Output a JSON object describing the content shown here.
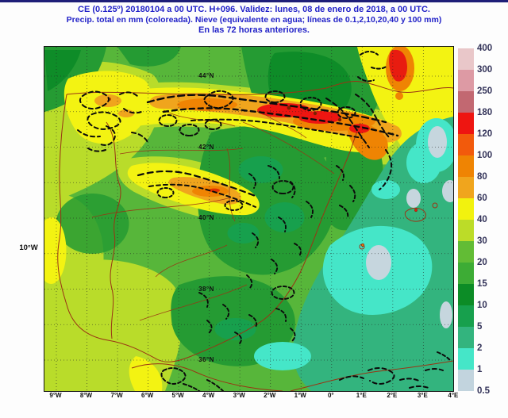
{
  "title": {
    "line1": "CE (0.125º) 20180104 a 00 UTC.  H+096. Validez: lunes, 08 de enero de 2018,  a  00 UTC.",
    "line2": "Precip. total en mm (coloreada). Nieve (equivalente en agua; líneas de 0.1,2,10,20,40 y 100 mm)",
    "line3": "En las 72 horas anteriores."
  },
  "map": {
    "lat_labels": [
      "44°N",
      "42°N",
      "40°N",
      "38°N",
      "36°N"
    ],
    "left_lon_label": "10°W",
    "lon_labels": [
      "9°W",
      "8°W",
      "7°W",
      "6°W",
      "5°W",
      "4°W",
      "3°W",
      "2°W",
      "1°W",
      "0°",
      "1°E",
      "2°E",
      "3°E",
      "4°E"
    ],
    "snow_line_values": "0.1, 2, 10, 20, 40, 100",
    "field": "Precipitación total (mm) en las 72 horas anteriores"
  },
  "colorbar": {
    "unit": "mm",
    "labels": [
      "400",
      "300",
      "250",
      "180",
      "120",
      "100",
      "80",
      "60",
      "40",
      "30",
      "20",
      "15",
      "10",
      "5",
      "2",
      "1",
      "0.5"
    ],
    "band_colors": [
      "#e9c7c9",
      "#dd9aa4",
      "#c26871",
      "#ee1511",
      "#f25a0c",
      "#ef8403",
      "#f0a51d",
      "#f2f20e",
      "#bcdc28",
      "#62bc35",
      "#3dac35",
      "#0c8c26",
      "#17a04d",
      "#33b47e",
      "#45e6c8",
      "#c2d4de"
    ]
  },
  "colors": {
    "title_blue": "#2222c8",
    "top_border": "#1e1e78",
    "border_lines": "#9a3414",
    "snow_contours": "#0b0b0b"
  }
}
